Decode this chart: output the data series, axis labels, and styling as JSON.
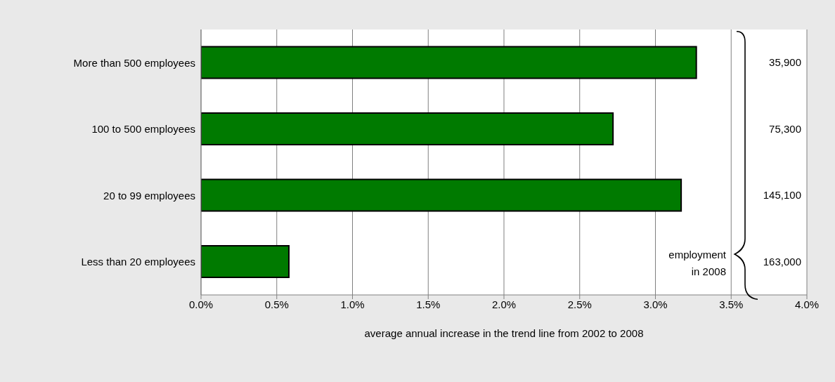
{
  "chart_data": {
    "type": "bar",
    "orientation": "horizontal",
    "categories": [
      "More than 500 employees",
      "100 to 500 employees",
      "20 to 99 employees",
      "Less than 20 employees"
    ],
    "values": [
      3.27,
      2.72,
      3.17,
      0.58
    ],
    "color": "#007a00",
    "xlabel": "average annual increase in the trend line from 2002 to 2008",
    "xlim": [
      0,
      4
    ],
    "xticks": [
      {
        "value": 0,
        "label": "0.0%"
      },
      {
        "value": 0.5,
        "label": "0.5%"
      },
      {
        "value": 1,
        "label": "1.0%"
      },
      {
        "value": 1.5,
        "label": "1.5%"
      },
      {
        "value": 2,
        "label": "2.0%"
      },
      {
        "value": 2.5,
        "label": "2.5%"
      },
      {
        "value": 3,
        "label": "3.0%"
      },
      {
        "value": 3.5,
        "label": "3.5%"
      },
      {
        "value": 4,
        "label": "4.0%"
      }
    ],
    "grid": "x",
    "annotations": [
      "35,900",
      "75,300",
      "145,100",
      "163,000",
      "employment in 2008"
    ]
  }
}
